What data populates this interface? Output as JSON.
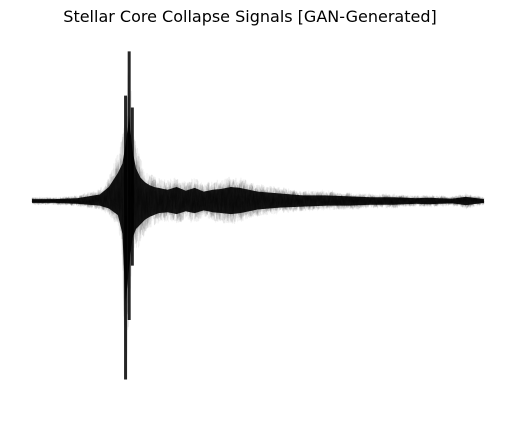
{
  "chart_data": {
    "type": "line",
    "title": "Stellar Core Collapse Signals [GAN-Generated]",
    "xlabel": "",
    "ylabel": "",
    "axes_visible": false,
    "grid": false,
    "legend": "none",
    "series_count": 32,
    "series_color": "#000000",
    "series_opacity": 0.06,
    "median_opacity": 0.9,
    "xlim": [
      0,
      1
    ],
    "ylim": [
      -1.2,
      1.2
    ],
    "envelope": {
      "x": [
        0.0,
        0.05,
        0.1,
        0.15,
        0.17,
        0.19,
        0.2,
        0.207,
        0.215,
        0.222,
        0.23,
        0.24,
        0.25,
        0.26,
        0.27,
        0.28,
        0.3,
        0.32,
        0.34,
        0.36,
        0.38,
        0.4,
        0.42,
        0.44,
        0.46,
        0.48,
        0.5,
        0.55,
        0.6,
        0.65,
        0.7,
        0.75,
        0.8,
        0.85,
        0.88,
        0.9,
        0.93,
        0.96,
        1.0
      ],
      "upper": [
        0.02,
        0.02,
        0.03,
        0.07,
        0.15,
        0.3,
        0.4,
        0.6,
        0.9,
        0.55,
        0.35,
        0.25,
        0.2,
        0.17,
        0.15,
        0.14,
        0.12,
        0.15,
        0.11,
        0.14,
        0.1,
        0.12,
        0.13,
        0.15,
        0.14,
        0.12,
        0.1,
        0.08,
        0.06,
        0.06,
        0.05,
        0.04,
        0.04,
        0.03,
        0.035,
        0.03,
        0.025,
        0.045,
        0.02
      ],
      "lower": [
        -0.02,
        -0.02,
        -0.03,
        -0.05,
        -0.08,
        -0.15,
        -0.35,
        -1.1,
        -0.7,
        -0.4,
        -0.3,
        -0.25,
        -0.2,
        -0.17,
        -0.15,
        -0.13,
        -0.12,
        -0.14,
        -0.11,
        -0.13,
        -0.1,
        -0.12,
        -0.13,
        -0.14,
        -0.13,
        -0.11,
        -0.09,
        -0.07,
        -0.06,
        -0.05,
        -0.05,
        -0.04,
        -0.04,
        -0.03,
        -0.035,
        -0.03,
        -0.025,
        -0.045,
        -0.02
      ]
    }
  }
}
